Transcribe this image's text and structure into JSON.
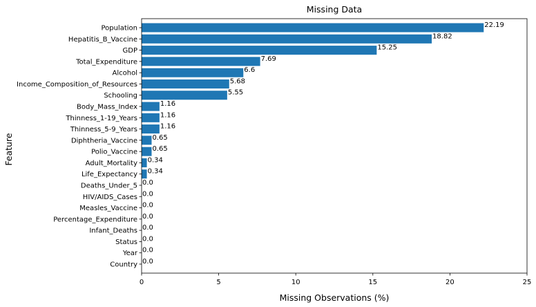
{
  "chart_data": {
    "type": "bar",
    "orientation": "horizontal",
    "title": "Missing Data",
    "xlabel": "Missing Observations (%)",
    "ylabel": "Feature",
    "xlim": [
      0,
      25
    ],
    "xticks": [
      "0",
      "5",
      "10",
      "15",
      "20",
      "25"
    ],
    "bar_color": "#1f77b4",
    "grid": false,
    "categories": [
      "Population",
      "Hepatitis_B_Vaccine",
      "GDP",
      "Total_Expenditure",
      "Alcohol",
      "Income_Composition_of_Resources",
      "Schooling",
      "Body_Mass_Index",
      "Thinness_1-19_Years",
      "Thinness_5-9_Years",
      "Diphtheria_Vaccine",
      "Polio_Vaccine",
      "Adult_Mortality",
      "Life_Expectancy",
      "Deaths_Under_5",
      "HIV/AIDS_Cases",
      "Measles_Vaccine",
      "Percentage_Expenditure",
      "Infant_Deaths",
      "Status",
      "Year",
      "Country"
    ],
    "values": [
      22.19,
      18.82,
      15.25,
      7.69,
      6.6,
      5.68,
      5.55,
      1.16,
      1.16,
      1.16,
      0.65,
      0.65,
      0.34,
      0.34,
      0.0,
      0.0,
      0.0,
      0.0,
      0.0,
      0.0,
      0.0,
      0.0
    ],
    "value_labels": [
      "22.19",
      "18.82",
      "15.25",
      "7.69",
      "6.6",
      "5.68",
      "5.55",
      "1.16",
      "1.16",
      "1.16",
      "0.65",
      "0.65",
      "0.34",
      "0.34",
      "0.0",
      "0.0",
      "0.0",
      "0.0",
      "0.0",
      "0.0",
      "0.0",
      "0.0"
    ]
  }
}
